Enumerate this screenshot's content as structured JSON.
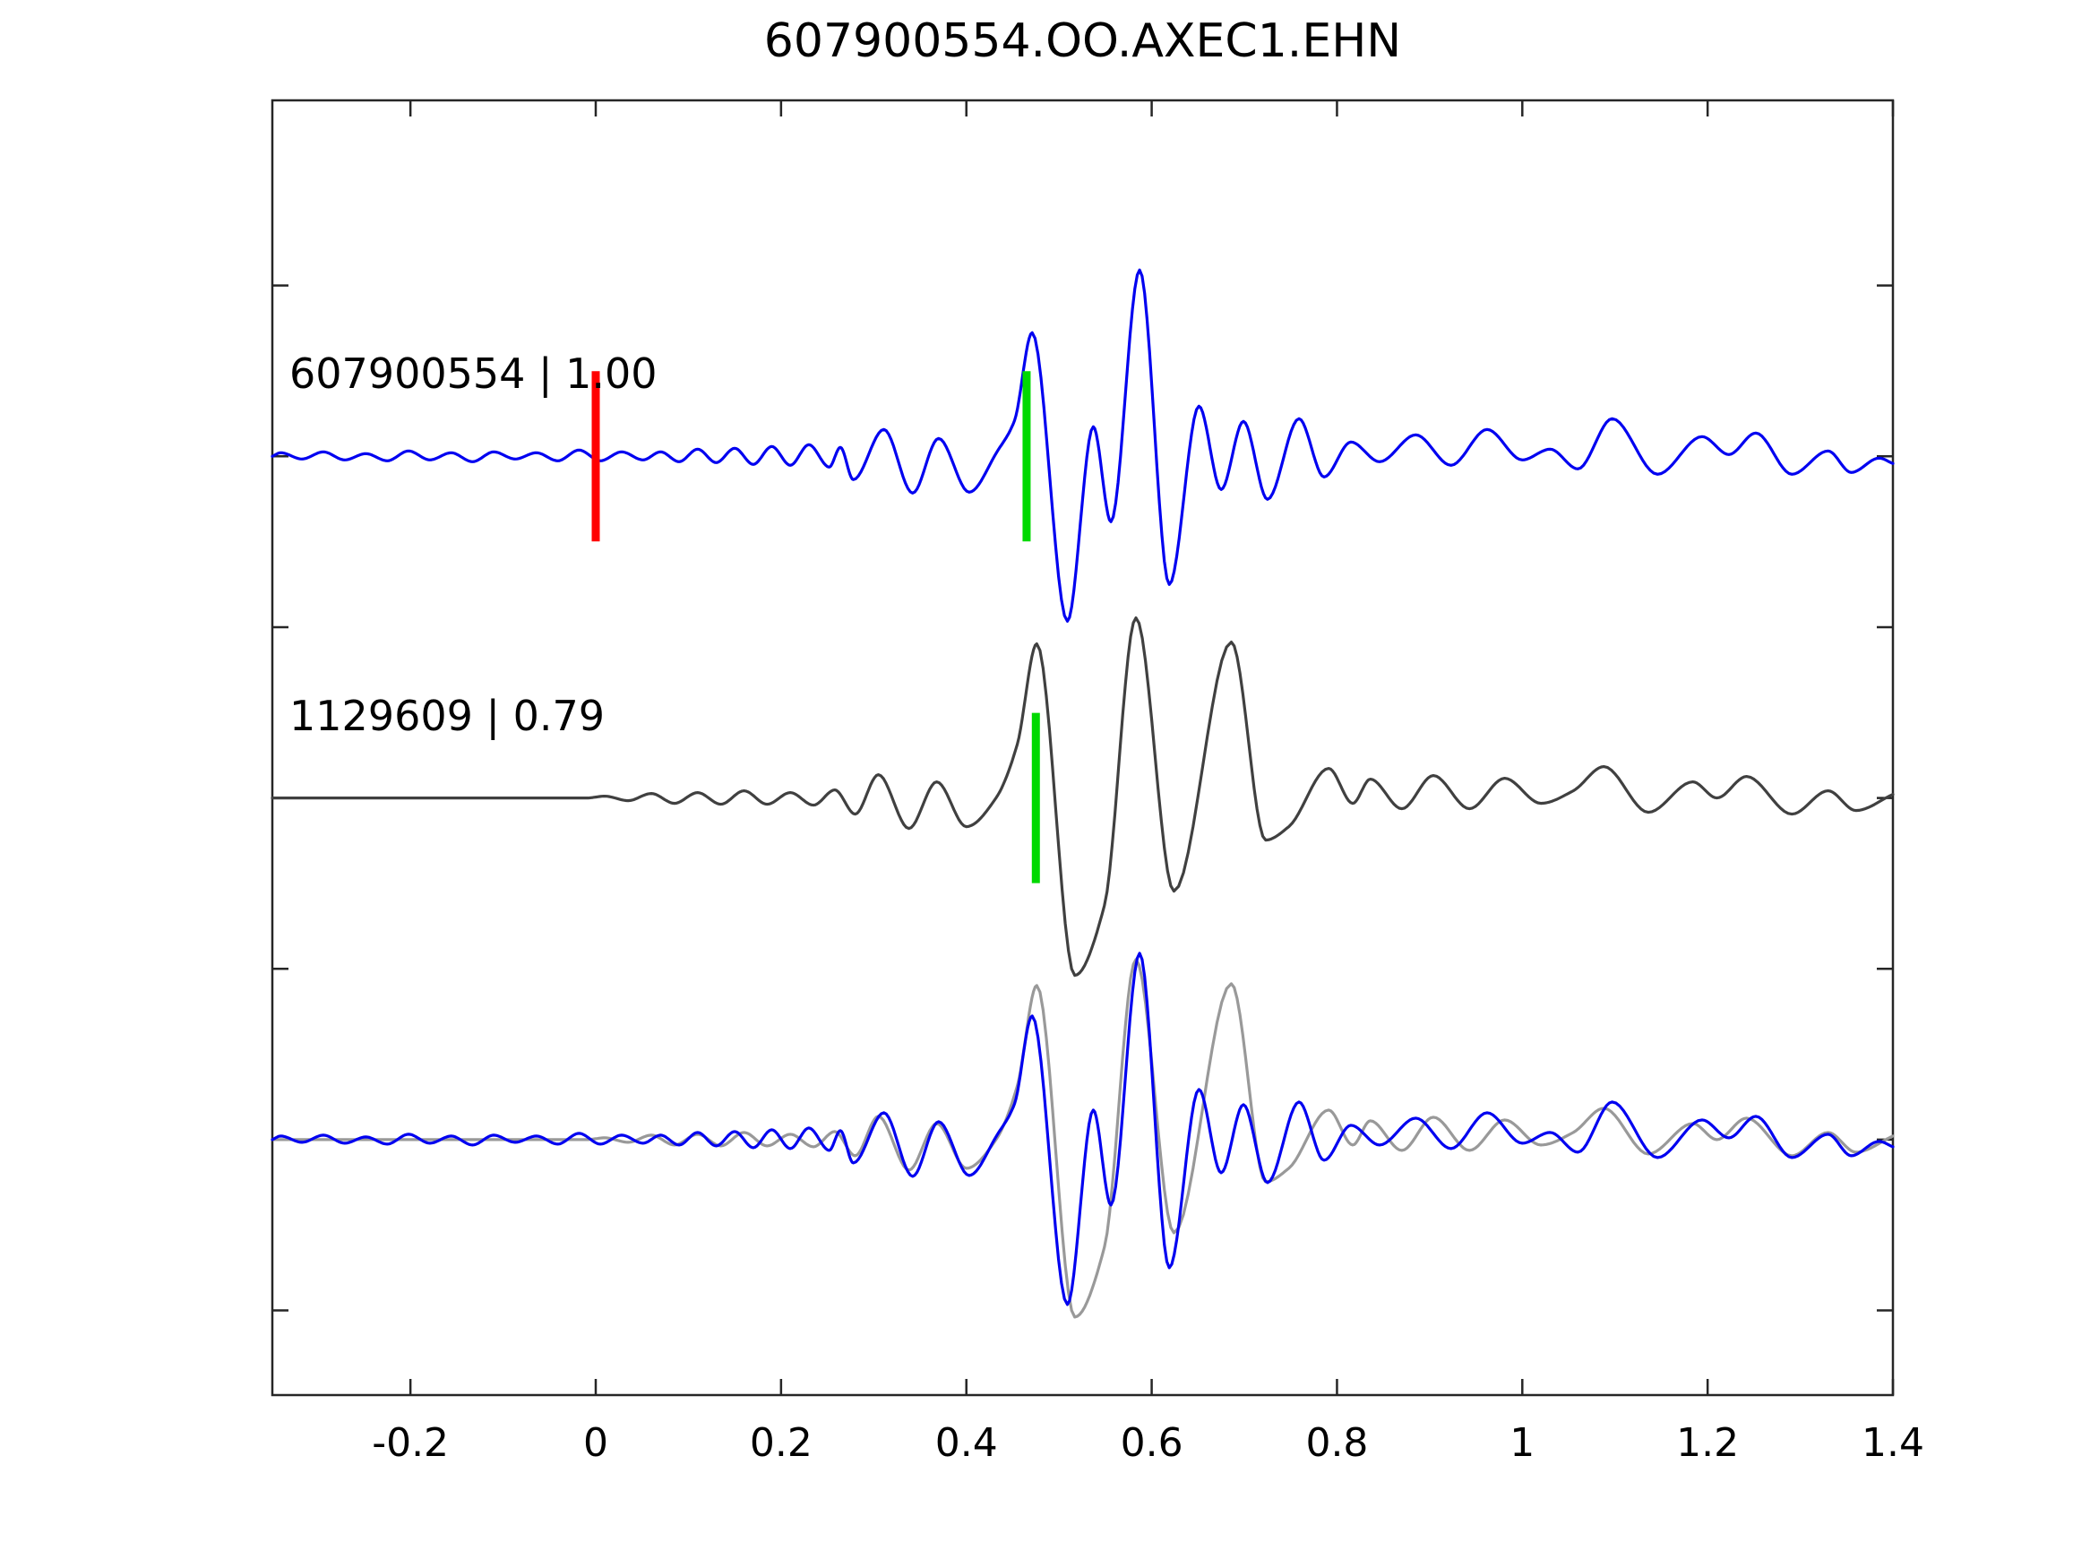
{
  "figure": {
    "title": "607900554.OO.AXEC1.EHN"
  },
  "trace_labels": [
    {
      "text": "607900554 | 1.00",
      "trace_y": 3
    },
    {
      "text": "1129609 | 0.79",
      "trace_y": 2
    }
  ],
  "chart_data": {
    "type": "line",
    "subtype": "seismic-waveform-comparison",
    "title": "607900554.OO.AXEC1.EHN",
    "xlabel": "",
    "ylabel": "",
    "x_range": [
      -0.349,
      1.4
    ],
    "y_range": [
      0.253,
      4.043
    ],
    "grid": false,
    "legend": "none",
    "x_ticks": [
      {
        "v": -0.2,
        "label": "-0.2"
      },
      {
        "v": 0.0,
        "label": "0"
      },
      {
        "v": 0.2,
        "label": "0.2"
      },
      {
        "v": 0.4,
        "label": "0.4"
      },
      {
        "v": 0.6,
        "label": "0.6"
      },
      {
        "v": 0.8,
        "label": "0.8"
      },
      {
        "v": 1.0,
        "label": "1"
      },
      {
        "v": 1.2,
        "label": "1.2"
      },
      {
        "v": 1.4,
        "label": "1.4"
      }
    ],
    "y_ticks": [
      0.5,
      1.0,
      1.5,
      2.0,
      2.5,
      3.0,
      3.5
    ],
    "amp_unit": "px",
    "colors": {
      "detection_blue": "#0000f0",
      "template_dark": "#404040",
      "overlay_gray": "#999999",
      "pick_red": "#ff0000",
      "pick_green": "#00d900",
      "axis": "#262626"
    },
    "series": [
      {
        "name": "detection-607900554",
        "color_key": "detection_blue",
        "baseline_y": 3,
        "points": [
          [
            -0.349,
            0
          ],
          [
            -0.34,
            4
          ],
          [
            -0.317,
            -3
          ],
          [
            -0.294,
            5
          ],
          [
            -0.271,
            -4
          ],
          [
            -0.248,
            3
          ],
          [
            -0.225,
            -5
          ],
          [
            -0.202,
            6
          ],
          [
            -0.179,
            -4
          ],
          [
            -0.156,
            4
          ],
          [
            -0.133,
            -6
          ],
          [
            -0.11,
            5
          ],
          [
            -0.087,
            -3
          ],
          [
            -0.064,
            4
          ],
          [
            -0.041,
            -5
          ],
          [
            -0.018,
            7
          ],
          [
            0.005,
            -5
          ],
          [
            0.028,
            5
          ],
          [
            0.051,
            -4
          ],
          [
            0.07,
            5
          ],
          [
            0.09,
            -6
          ],
          [
            0.11,
            8
          ],
          [
            0.13,
            -7
          ],
          [
            0.15,
            9
          ],
          [
            0.17,
            -9
          ],
          [
            0.19,
            11
          ],
          [
            0.21,
            -10
          ],
          [
            0.23,
            13
          ],
          [
            0.252,
            -12
          ],
          [
            0.264,
            10
          ],
          [
            0.278,
            -26
          ],
          [
            0.311,
            30
          ],
          [
            0.342,
            -41
          ],
          [
            0.37,
            20
          ],
          [
            0.403,
            -40
          ],
          [
            0.433,
            5
          ],
          [
            0.452,
            40
          ],
          [
            0.471,
            138
          ],
          [
            0.509,
            -184
          ],
          [
            0.537,
            33
          ],
          [
            0.556,
            -73
          ],
          [
            0.587,
            208
          ],
          [
            0.619,
            -143
          ],
          [
            0.651,
            56
          ],
          [
            0.675,
            -37
          ],
          [
            0.699,
            39
          ],
          [
            0.725,
            -48
          ],
          [
            0.759,
            42
          ],
          [
            0.786,
            -23
          ],
          [
            0.815,
            16
          ],
          [
            0.846,
            -6
          ],
          [
            0.885,
            24
          ],
          [
            0.923,
            -10
          ],
          [
            0.962,
            30
          ],
          [
            1.0,
            -4
          ],
          [
            1.03,
            8
          ],
          [
            1.06,
            -14
          ],
          [
            1.097,
            42
          ],
          [
            1.146,
            -20
          ],
          [
            1.194,
            22
          ],
          [
            1.223,
            2
          ],
          [
            1.252,
            26
          ],
          [
            1.291,
            -20
          ],
          [
            1.33,
            6
          ],
          [
            1.355,
            -18
          ],
          [
            1.385,
            -2
          ],
          [
            1.4,
            -8
          ]
        ]
      },
      {
        "name": "template-1129609",
        "color_key": "template_dark",
        "baseline_y": 2,
        "points": [
          [
            -0.349,
            0
          ],
          [
            -0.25,
            0
          ],
          [
            -0.15,
            0
          ],
          [
            -0.05,
            0
          ],
          [
            -0.01,
            0
          ],
          [
            0.01,
            2
          ],
          [
            0.035,
            -3
          ],
          [
            0.06,
            5
          ],
          [
            0.085,
            -6
          ],
          [
            0.11,
            6
          ],
          [
            0.135,
            -7
          ],
          [
            0.16,
            8
          ],
          [
            0.185,
            -7
          ],
          [
            0.21,
            6
          ],
          [
            0.235,
            -8
          ],
          [
            0.258,
            9
          ],
          [
            0.28,
            -18
          ],
          [
            0.305,
            26
          ],
          [
            0.338,
            -34
          ],
          [
            0.368,
            18
          ],
          [
            0.4,
            -32
          ],
          [
            0.432,
            0
          ],
          [
            0.455,
            60
          ],
          [
            0.476,
            172
          ],
          [
            0.517,
            -198
          ],
          [
            0.549,
            -120
          ],
          [
            0.583,
            201
          ],
          [
            0.624,
            -104
          ],
          [
            0.686,
            174
          ],
          [
            0.723,
            -47
          ],
          [
            0.748,
            -32
          ],
          [
            0.791,
            33
          ],
          [
            0.817,
            -6
          ],
          [
            0.836,
            21
          ],
          [
            0.87,
            -12
          ],
          [
            0.904,
            25
          ],
          [
            0.943,
            -12
          ],
          [
            0.981,
            22
          ],
          [
            1.02,
            -6
          ],
          [
            1.055,
            8
          ],
          [
            1.088,
            35
          ],
          [
            1.136,
            -16
          ],
          [
            1.184,
            18
          ],
          [
            1.21,
            0
          ],
          [
            1.242,
            24
          ],
          [
            1.291,
            -18
          ],
          [
            1.33,
            8
          ],
          [
            1.36,
            -14
          ],
          [
            1.4,
            4
          ]
        ]
      },
      {
        "name": "overlay-template-gray",
        "color_key": "overlay_gray",
        "baseline_y": 1,
        "reuse_points_of": 1
      },
      {
        "name": "overlay-detection-blue",
        "color_key": "detection_blue",
        "baseline_y": 1,
        "reuse_points_of": 0
      }
    ],
    "markers": [
      {
        "name": "pick-red",
        "trace_y": 3,
        "t": 0.0,
        "color_key": "pick_red"
      },
      {
        "name": "pick-green-1",
        "trace_y": 3,
        "t": 0.465,
        "color_key": "pick_green"
      },
      {
        "name": "pick-green-2",
        "trace_y": 2,
        "t": 0.475,
        "color_key": "pick_green"
      }
    ]
  }
}
